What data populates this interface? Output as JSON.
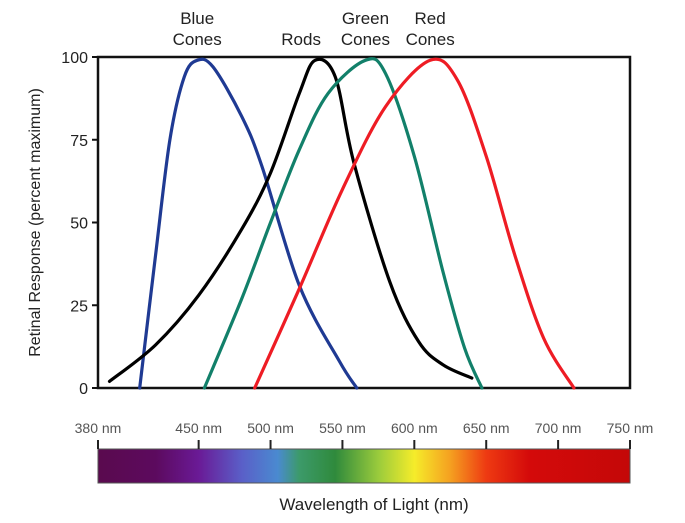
{
  "chart_data": {
    "type": "line",
    "title": "",
    "xlabel": "Wavelength of Light (nm)",
    "ylabel": "Retinal Response (percent maximum)",
    "xlim": [
      380,
      750
    ],
    "ylim": [
      0,
      100
    ],
    "yticks": [
      0,
      25,
      50,
      75,
      100
    ],
    "ytick_labels": [
      "0",
      "25",
      "50",
      "75",
      "100"
    ],
    "xticks": [
      380,
      450,
      500,
      550,
      600,
      650,
      700,
      750
    ],
    "xtick_labels": [
      "380 nm",
      "450 nm",
      "500 nm",
      "550 nm",
      "600 nm",
      "650 nm",
      "700 nm",
      "750 nm"
    ],
    "grid": false,
    "series": [
      {
        "name": "Blue Cones",
        "label_lines": [
          "Blue",
          "Cones"
        ],
        "color": "#1f3a93",
        "x": [
          409,
          420,
          430,
          440,
          449,
          460,
          480,
          494,
          520,
          548,
          560
        ],
        "y": [
          0,
          40,
          75,
          94,
          99,
          97,
          82,
          67,
          31,
          8,
          0
        ]
      },
      {
        "name": "Rods",
        "label_lines": [
          "",
          "Rods"
        ],
        "color": "#000000",
        "x": [
          388,
          420,
          450,
          480,
          500,
          520,
          531,
          545,
          558,
          583,
          603,
          620,
          640
        ],
        "y": [
          2,
          13,
          28,
          48,
          65,
          89,
          99,
          94,
          68,
          32,
          14,
          7,
          3
        ]
      },
      {
        "name": "Green Cones",
        "label_lines": [
          "Green",
          "Cones"
        ],
        "color": "#12806a",
        "x": [
          454,
          480,
          500,
          520,
          540,
          566,
          580,
          600,
          620,
          635,
          647
        ],
        "y": [
          0,
          27,
          50,
          72,
          89,
          99,
          95,
          70,
          35,
          12,
          0
        ]
      },
      {
        "name": "Red Cones",
        "label_lines": [
          "Red",
          "Cones"
        ],
        "color": "#ee1c24",
        "x": [
          489,
          520,
          550,
          580,
          611,
          630,
          650,
          670,
          690,
          711
        ],
        "y": [
          0,
          30,
          60,
          85,
          99,
          93,
          70,
          40,
          15,
          0
        ]
      }
    ],
    "spectrum_bar": {
      "stops": [
        {
          "nm": 380,
          "color": "#5a0a4e"
        },
        {
          "nm": 420,
          "color": "#5c0a5e"
        },
        {
          "nm": 450,
          "color": "#6a1a96"
        },
        {
          "nm": 480,
          "color": "#5a5fc8"
        },
        {
          "nm": 505,
          "color": "#4a8ad0"
        },
        {
          "nm": 520,
          "color": "#3c9a6a"
        },
        {
          "nm": 545,
          "color": "#2f8a3c"
        },
        {
          "nm": 575,
          "color": "#9acb3c"
        },
        {
          "nm": 600,
          "color": "#f5ec2a"
        },
        {
          "nm": 625,
          "color": "#f5a020"
        },
        {
          "nm": 650,
          "color": "#ee3a12"
        },
        {
          "nm": 680,
          "color": "#d40a0a"
        },
        {
          "nm": 750,
          "color": "#c40808"
        }
      ]
    }
  }
}
